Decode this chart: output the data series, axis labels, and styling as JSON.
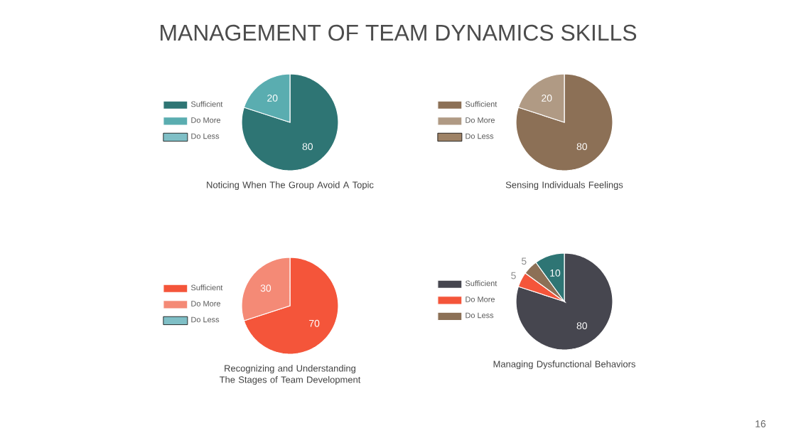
{
  "chart_data": [
    {
      "type": "pie",
      "title": "MANAGEMENT OF TEAM DYNAMICS SKILLS",
      "categories": [
        "Sufficient",
        "Do More",
        "Do Less"
      ],
      "values": [
        80,
        20,
        0
      ],
      "colors": [
        "#2e7574",
        "#5aadb0",
        "#7fbfc6"
      ],
      "xlabel": "Noticing When The Group Avoid A Topic",
      "data_labels": true,
      "legend": "left"
    },
    {
      "type": "pie",
      "categories": [
        "Sufficient",
        "Do More",
        "Do Less"
      ],
      "values": [
        80,
        20,
        0
      ],
      "colors": [
        "#8c7056",
        "#b09a84",
        "#9e8266"
      ],
      "xlabel": "Sensing Individuals Feelings",
      "data_labels": true,
      "legend": "left"
    },
    {
      "type": "pie",
      "categories": [
        "Sufficient",
        "Do More",
        "Do Less"
      ],
      "values": [
        70,
        30,
        0
      ],
      "colors": [
        "#f4553a",
        "#f48a76",
        "#7fbfc6"
      ],
      "xlabel": "Recognizing and Understanding The Stages of Team Development",
      "data_labels": true,
      "legend": "left"
    },
    {
      "type": "pie",
      "categories": [
        "Sufficient",
        "Do More",
        "Do Less",
        null
      ],
      "values": [
        80,
        5,
        5,
        10
      ],
      "colors": [
        "#46464f",
        "#f4553a",
        "#8c7056",
        "#2e7574"
      ],
      "xlabel": "Managing Dysfunctional Behaviors",
      "data_labels": true,
      "legend": "left",
      "annotations": [
        "16"
      ]
    }
  ]
}
